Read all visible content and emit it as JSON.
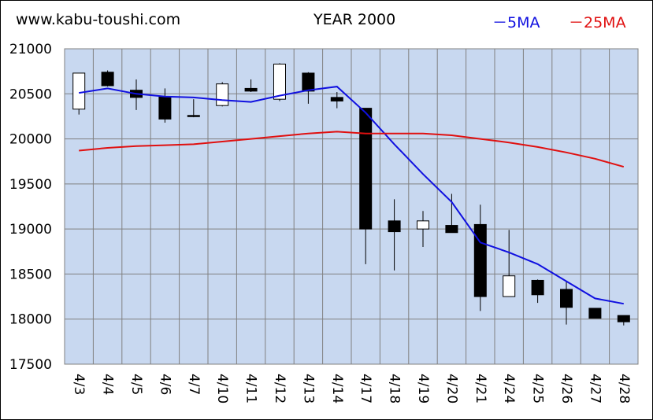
{
  "header": {
    "site": "www.kabu-toushi.com",
    "title": "YEAR 2000",
    "legend": [
      {
        "label": "－5MA",
        "color": "#1010e0"
      },
      {
        "label": "－25MA",
        "color": "#e01010"
      }
    ]
  },
  "chart_data": {
    "type": "candlestick",
    "title": "YEAR 2000",
    "categories": [
      "4/3",
      "4/4",
      "4/5",
      "4/6",
      "4/7",
      "4/10",
      "4/11",
      "4/12",
      "4/13",
      "4/14",
      "4/17",
      "4/18",
      "4/19",
      "4/20",
      "4/21",
      "4/24",
      "4/25",
      "4/26",
      "4/27",
      "4/28"
    ],
    "candles": [
      {
        "open": 20330,
        "high": 20730,
        "low": 20270,
        "close": 20730
      },
      {
        "open": 20740,
        "high": 20760,
        "low": 20580,
        "close": 20590
      },
      {
        "open": 20540,
        "high": 20660,
        "low": 20320,
        "close": 20460
      },
      {
        "open": 20470,
        "high": 20560,
        "low": 20180,
        "close": 20220
      },
      {
        "open": 20260,
        "high": 20440,
        "low": 20240,
        "close": 20250
      },
      {
        "open": 20370,
        "high": 20630,
        "low": 20360,
        "close": 20610
      },
      {
        "open": 20560,
        "high": 20660,
        "low": 20520,
        "close": 20530
      },
      {
        "open": 20440,
        "high": 20840,
        "low": 20420,
        "close": 20830
      },
      {
        "open": 20730,
        "high": 20740,
        "low": 20390,
        "close": 20530
      },
      {
        "open": 20460,
        "high": 20520,
        "low": 20340,
        "close": 20420
      },
      {
        "open": 20340,
        "high": 20340,
        "low": 18610,
        "close": 19000
      },
      {
        "open": 19090,
        "high": 19330,
        "low": 18540,
        "close": 18970
      },
      {
        "open": 19000,
        "high": 19200,
        "low": 18800,
        "close": 19090
      },
      {
        "open": 19040,
        "high": 19390,
        "low": 18960,
        "close": 18960
      },
      {
        "open": 19050,
        "high": 19270,
        "low": 18090,
        "close": 18250
      },
      {
        "open": 18250,
        "high": 18990,
        "low": 18250,
        "close": 18480
      },
      {
        "open": 18430,
        "high": 18440,
        "low": 18180,
        "close": 18270
      },
      {
        "open": 18330,
        "high": 18420,
        "low": 17940,
        "close": 18130
      },
      {
        "open": 18120,
        "high": 18120,
        "low": 18010,
        "close": 18010
      },
      {
        "open": 18040,
        "high": 18040,
        "low": 17930,
        "close": 17970
      }
    ],
    "series": [
      {
        "name": "5MA",
        "color": "#1010e0",
        "values": [
          20510,
          20560,
          20500,
          20470,
          20460,
          20430,
          20410,
          20480,
          20540,
          20580,
          20290,
          19940,
          19610,
          19300,
          18850,
          18740,
          18610,
          18420,
          18230,
          18170
        ]
      },
      {
        "name": "25MA",
        "color": "#e01010",
        "values": [
          19870,
          19900,
          19920,
          19930,
          19940,
          19970,
          20000,
          20030,
          20060,
          20080,
          20060,
          20060,
          20060,
          20040,
          20000,
          19960,
          19910,
          19850,
          19780,
          19690
        ]
      }
    ],
    "ylim": [
      17500,
      21000
    ],
    "yticks": [
      17500,
      18000,
      18500,
      19000,
      19500,
      20000,
      20500,
      21000
    ],
    "grid": true,
    "legend": "top-right",
    "colors": {
      "plot_bg": "#c8d8f0",
      "bull_fill": "#ffffff",
      "bear_fill": "#000000",
      "grid": "#808080"
    }
  }
}
